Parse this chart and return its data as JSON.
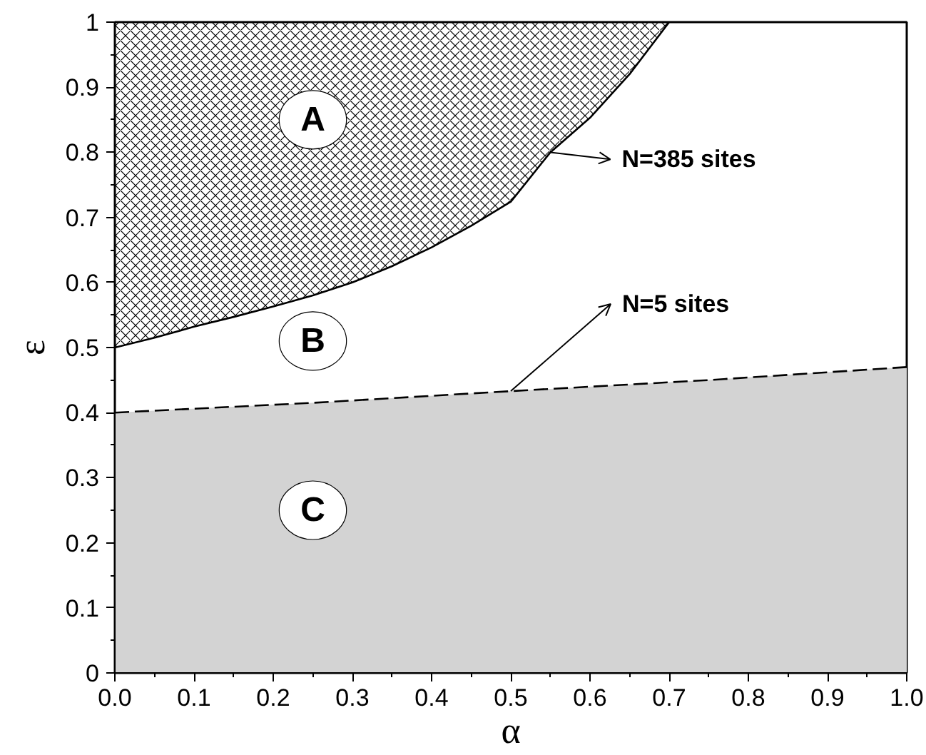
{
  "chart_data": {
    "type": "line",
    "xlabel": "α",
    "ylabel": "ε",
    "xlim": [
      0,
      1
    ],
    "ylim": [
      0,
      1
    ],
    "xticks": [
      {
        "value": 0,
        "label": "0.0"
      },
      0.1,
      0.2,
      0.3,
      0.4,
      0.5,
      0.6,
      0.7,
      0.8,
      0.9,
      {
        "value": 1,
        "label": "1.0"
      }
    ],
    "yticks": [
      0,
      0.1,
      0.2,
      0.3,
      0.4,
      0.5,
      0.6,
      0.7,
      0.8,
      0.9,
      1
    ],
    "grid": false,
    "series": [
      {
        "color": "#000000",
        "line_style": "solid",
        "x": [
          0,
          0.05,
          0.1,
          0.15,
          0.2,
          0.25,
          0.3,
          0.35,
          0.4,
          0.45,
          0.5,
          0.55,
          0.6,
          0.65,
          0.7
        ],
        "values": [
          0.5,
          0.515,
          0.532,
          0.547,
          0.563,
          0.58,
          0.6,
          0.625,
          0.654,
          0.687,
          0.724,
          0.8,
          0.853,
          0.92,
          1.0
        ],
        "lower": [
          0.5,
          0.515,
          0.532,
          0.547,
          0.563,
          0.58,
          0.6,
          0.625,
          0.654,
          0.687,
          0.724,
          0.8,
          0.853,
          0.92,
          1.0
        ],
        "upper": [
          1,
          1,
          1,
          1,
          1,
          1,
          1,
          1,
          1,
          1,
          1,
          1,
          1,
          1,
          1
        ]
      },
      {
        "type": "area",
        "color": "#d3d3d3",
        "line_style": "dashed",
        "x": [
          0,
          0.25,
          0.5,
          0.75,
          1
        ],
        "values": [
          0.4,
          0.415,
          0.433,
          0.45,
          0.47
        ]
      }
    ],
    "annotations": [
      "A",
      "B",
      "C",
      {
        "text": "N=385 sites",
        "x": 0.55,
        "y": 0.8
      },
      {
        "text": "N=5 sites",
        "x": 0.5,
        "y": 0.433
      }
    ]
  }
}
